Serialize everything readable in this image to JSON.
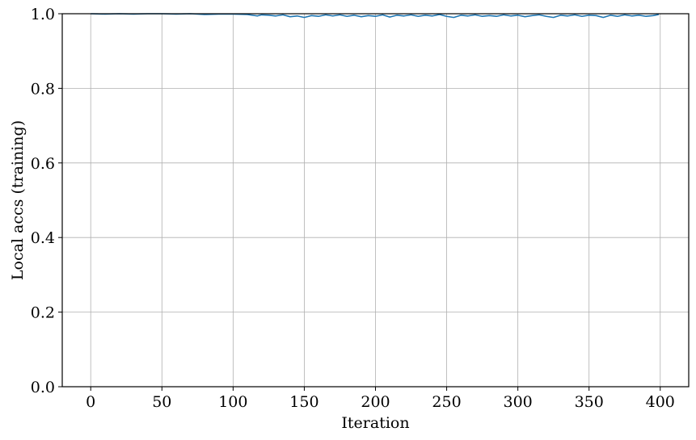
{
  "chart_data": {
    "type": "line",
    "title": "",
    "xlabel": "Iteration",
    "ylabel": "Local accs (training)",
    "xlim": [
      -20,
      420
    ],
    "ylim": [
      0.0,
      1.0
    ],
    "xticks": [
      0,
      50,
      100,
      150,
      200,
      250,
      300,
      350,
      400
    ],
    "xtick_labels": [
      "0",
      "50",
      "100",
      "150",
      "200",
      "250",
      "300",
      "350",
      "400"
    ],
    "yticks": [
      0.0,
      0.2,
      0.4,
      0.6,
      0.8,
      1.0
    ],
    "ytick_labels": [
      "0.0",
      "0.2",
      "0.4",
      "0.6",
      "0.8",
      "1.0"
    ],
    "grid": true,
    "series": [
      {
        "color": "#1f77b4",
        "x": [
          0,
          10,
          20,
          30,
          40,
          50,
          60,
          70,
          80,
          90,
          100,
          110,
          117,
          120,
          125,
          130,
          135,
          140,
          145,
          150,
          155,
          160,
          165,
          170,
          175,
          180,
          185,
          190,
          195,
          200,
          205,
          210,
          215,
          220,
          225,
          230,
          235,
          240,
          245,
          250,
          255,
          260,
          265,
          270,
          275,
          280,
          285,
          290,
          295,
          300,
          305,
          310,
          315,
          320,
          325,
          330,
          335,
          340,
          345,
          350,
          355,
          360,
          365,
          370,
          375,
          380,
          385,
          390,
          395,
          399
        ],
        "y": [
          1.0,
          0.999,
          1.0,
          0.999,
          1.0,
          1.0,
          0.999,
          1.0,
          0.998,
          0.999,
          0.999,
          0.998,
          0.994,
          0.997,
          0.996,
          0.994,
          0.997,
          0.992,
          0.994,
          0.99,
          0.995,
          0.993,
          0.997,
          0.994,
          0.997,
          0.993,
          0.996,
          0.992,
          0.995,
          0.993,
          0.997,
          0.991,
          0.996,
          0.994,
          0.997,
          0.993,
          0.996,
          0.994,
          0.998,
          0.993,
          0.99,
          0.996,
          0.994,
          0.997,
          0.993,
          0.995,
          0.993,
          0.997,
          0.994,
          0.996,
          0.992,
          0.995,
          0.997,
          0.993,
          0.99,
          0.996,
          0.994,
          0.997,
          0.993,
          0.996,
          0.995,
          0.99,
          0.996,
          0.993,
          0.997,
          0.994,
          0.996,
          0.993,
          0.995,
          0.998
        ]
      }
    ]
  }
}
